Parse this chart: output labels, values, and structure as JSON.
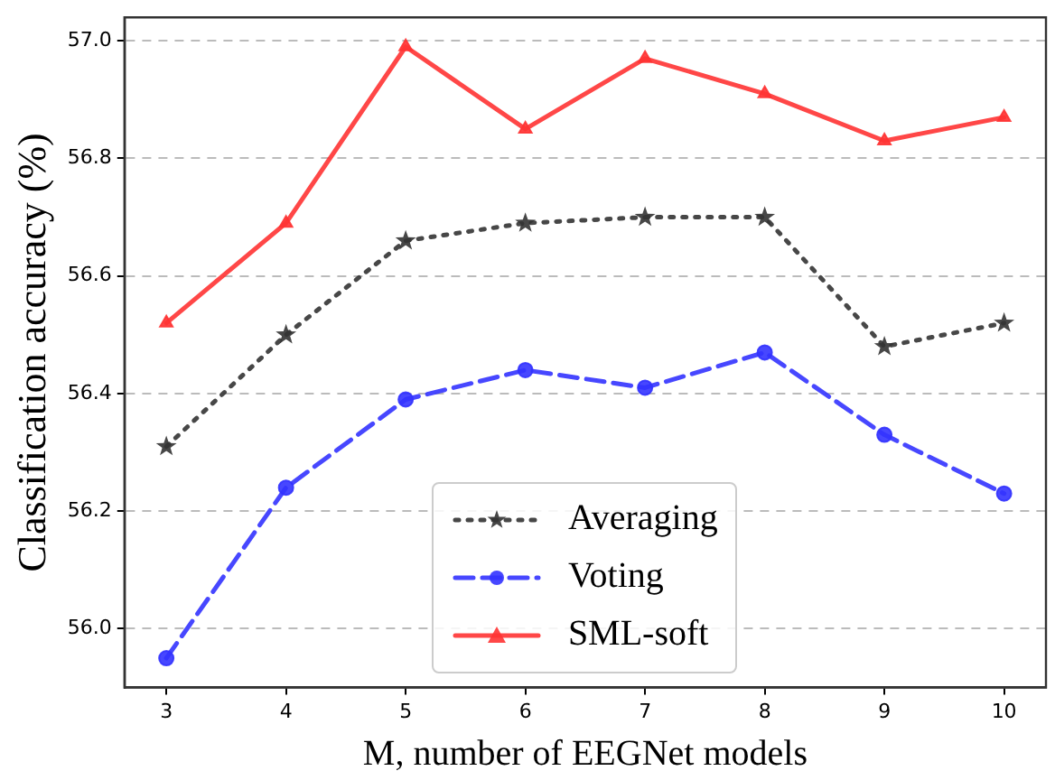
{
  "chart_data": {
    "type": "line",
    "xlabel": "M, number of EEGNet models",
    "ylabel": "Classification accuracy (%)",
    "x": [
      3,
      4,
      5,
      6,
      7,
      8,
      9,
      10
    ],
    "xlim": [
      2.65,
      10.35
    ],
    "xticks": [
      3,
      4,
      5,
      6,
      7,
      8,
      9,
      10
    ],
    "ylim": [
      55.9,
      57.04
    ],
    "yticks": [
      {
        "value": 56.0,
        "label": "56.0"
      },
      56.2,
      56.4,
      56.6,
      56.8,
      {
        "value": 57.0,
        "label": "57.0"
      }
    ],
    "grid": "y",
    "legend": "bottom",
    "series": [
      {
        "name": "Averaging",
        "color": "#333333",
        "marker": "star",
        "line_style": "dotted",
        "values": [
          56.31,
          56.5,
          56.66,
          56.69,
          56.7,
          56.7,
          56.48,
          56.52
        ]
      },
      {
        "name": "Voting",
        "color": "#3333ff",
        "marker": "circle",
        "line_style": "dashed",
        "values": [
          55.95,
          56.24,
          56.39,
          56.44,
          56.41,
          56.47,
          56.33,
          56.23
        ]
      },
      {
        "name": "SML-soft",
        "color": "#ff3333",
        "marker": "triangle",
        "line_style": "solid",
        "values": [
          56.52,
          56.69,
          56.99,
          56.85,
          56.97,
          56.91,
          56.83,
          56.87
        ]
      }
    ]
  }
}
